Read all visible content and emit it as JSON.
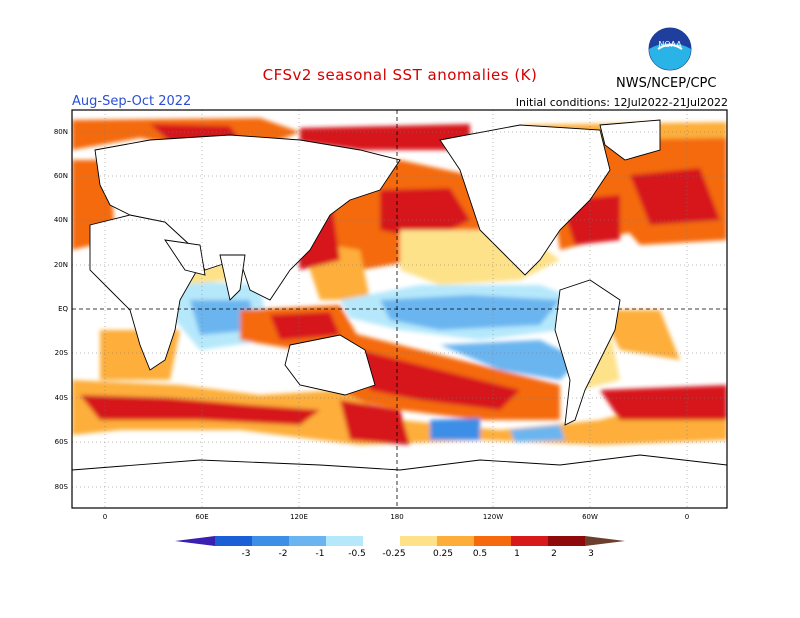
{
  "header": {
    "title": "CFSv2 seasonal SST anomalies (K)",
    "period": "Aug-Sep-Oct 2022",
    "initial_conditions": "Initial conditions: 12Jul2022-21Jul2022",
    "agency": "NWS/NCEP/CPC",
    "logo_text": "NOAA"
  },
  "axes": {
    "lat_labels": [
      "80N",
      "60N",
      "40N",
      "20N",
      "EQ",
      "20S",
      "40S",
      "60S",
      "80S"
    ],
    "lon_labels": [
      "0",
      "60E",
      "120E",
      "180",
      "120W",
      "60W",
      "0"
    ]
  },
  "colorbar": {
    "labels": [
      "-3",
      "-2",
      "-1",
      "-0.5",
      "-0.25",
      "0.25",
      "0.5",
      "1",
      "2",
      "3"
    ],
    "colors": [
      "#3b1fb0",
      "#1b5fd6",
      "#3d8ee6",
      "#6ab5f0",
      "#b6e8fb",
      "#ffffff",
      "#fde28a",
      "#fdae3a",
      "#f46a0c",
      "#d7191c",
      "#8e0a0a",
      "#6b3e2e"
    ]
  },
  "legend_colors": {
    "strong_warm": "#d7191c",
    "warm": "#f46a0c",
    "mild_warm": "#fdae3a",
    "weak_warm": "#fde28a",
    "weak_cool": "#b6e8fb",
    "cool": "#6ab5f0",
    "strong_cool": "#3d8ee6"
  }
}
